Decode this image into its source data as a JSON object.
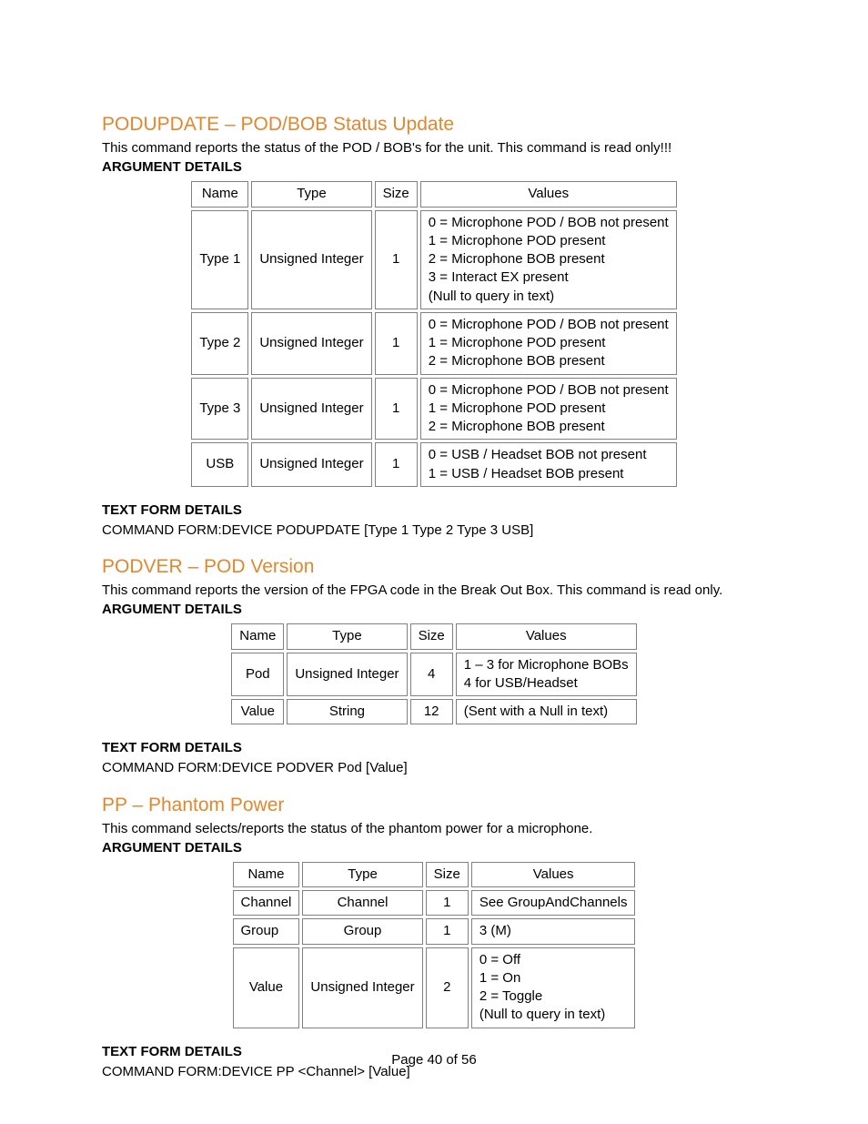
{
  "colors": {
    "heading": "#e08830",
    "border": "#808080",
    "text": "#000000",
    "background": "#ffffff"
  },
  "footer": "Page 40 of 56",
  "sections": [
    {
      "title": "PODUPDATE – POD/BOB Status Update",
      "description": "This command reports the status of the POD / BOB's for the unit. This command is read only!!!",
      "argHeader": "ARGUMENT DETAILS",
      "table": {
        "headers": [
          "Name",
          "Type",
          "Size",
          "Values"
        ],
        "rows": [
          {
            "name": "Type 1",
            "type": "Unsigned Integer",
            "size": "1",
            "values": "0 = Microphone POD / BOB not present\n1 = Microphone POD present\n2 = Microphone BOB present\n3 = Interact EX present\n(Null to query in text)"
          },
          {
            "name": "Type 2",
            "type": "Unsigned Integer",
            "size": "1",
            "values": "0 = Microphone POD / BOB not present\n1 = Microphone POD present\n2 = Microphone BOB present"
          },
          {
            "name": "Type 3",
            "type": "Unsigned Integer",
            "size": "1",
            "values": "0 = Microphone POD / BOB not present\n1 = Microphone POD present\n2 = Microphone BOB present"
          },
          {
            "name": "USB",
            "type": "Unsigned Integer",
            "size": "1",
            "values": "0 = USB / Headset BOB not present\n1 = USB / Headset BOB present"
          }
        ]
      },
      "textFormHeader": "TEXT FORM DETAILS",
      "textForm": "COMMAND FORM:DEVICE PODUPDATE [Type 1 Type 2 Type 3 USB]"
    },
    {
      "title": "PODVER – POD Version",
      "description": "This command reports the version of the FPGA code in the Break Out Box. This command is read only.",
      "argHeader": "ARGUMENT DETAILS",
      "table": {
        "headers": [
          "Name",
          "Type",
          "Size",
          "Values"
        ],
        "rows": [
          {
            "name": "Pod",
            "type": "Unsigned Integer",
            "size": "4",
            "values": "1 – 3 for Microphone BOBs\n4 for USB/Headset"
          },
          {
            "name": "Value",
            "type": "String",
            "size": "12",
            "values": "(Sent with a Null in text)"
          }
        ]
      },
      "textFormHeader": "TEXT FORM DETAILS",
      "textForm": "COMMAND FORM:DEVICE PODVER Pod [Value]"
    },
    {
      "title": "PP – Phantom Power",
      "description": "This command selects/reports the status of the phantom power for a microphone.",
      "argHeader": "ARGUMENT DETAILS",
      "table": {
        "headers": [
          "Name",
          "Type",
          "Size",
          "Values"
        ],
        "rows": [
          {
            "name": "Channel",
            "type": "Channel",
            "size": "1",
            "values": "See GroupAndChannels"
          },
          {
            "name": "Group",
            "type": "Group",
            "size": "1",
            "values": "3 (M)"
          },
          {
            "name": "Value",
            "type": "Unsigned Integer",
            "size": "2",
            "values": "0 = Off\n1 = On\n2 = Toggle\n(Null to query in text)"
          }
        ]
      },
      "textFormHeader": "TEXT FORM DETAILS",
      "textForm": "COMMAND FORM:DEVICE PP <Channel> [Value]"
    }
  ]
}
